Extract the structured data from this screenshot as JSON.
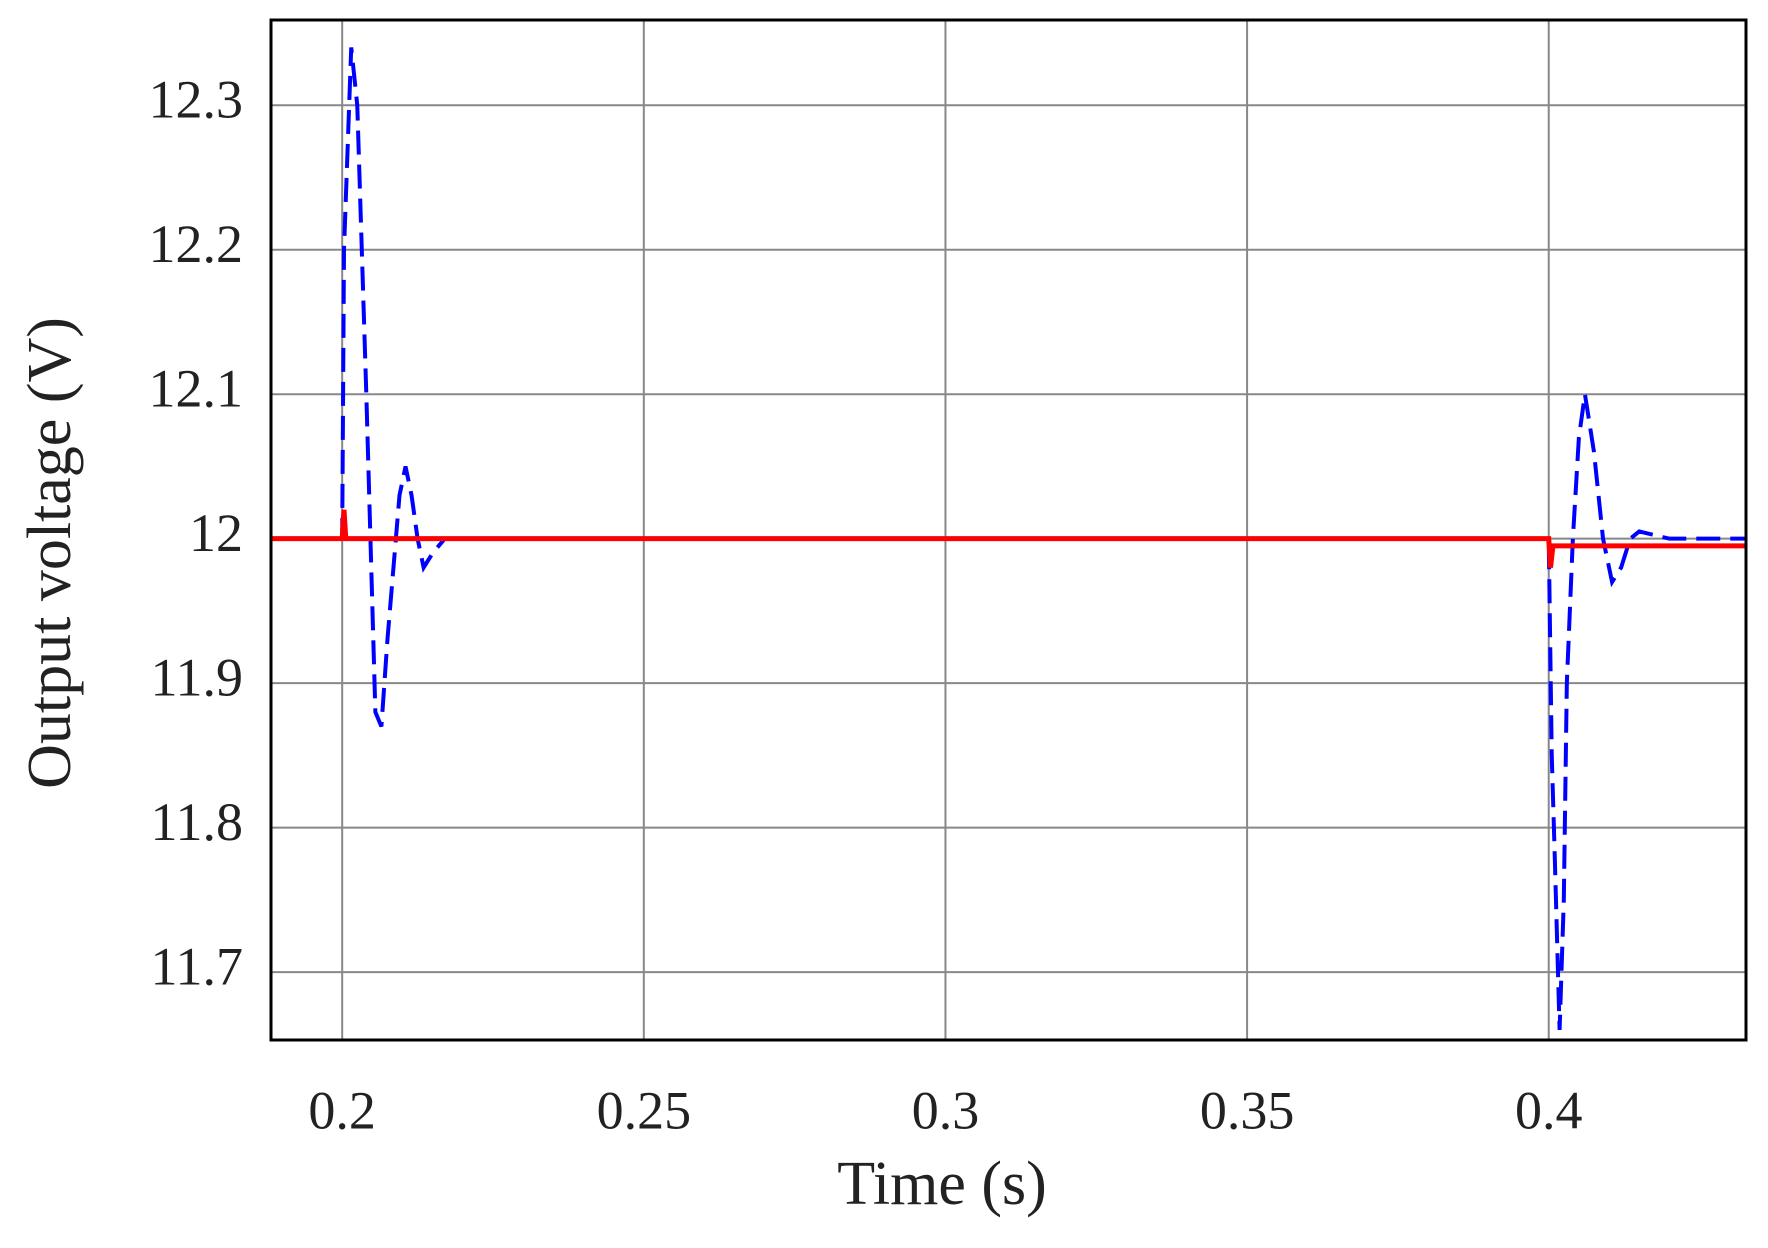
{
  "chart_data": {
    "type": "line",
    "x_label": "Time (s)",
    "y_label": "Output voltage (V)",
    "xlim": [
      0.1882,
      0.4327
    ],
    "ylim": [
      11.653,
      12.359
    ],
    "xticks": [
      0.2,
      0.25,
      0.3,
      0.35,
      0.4
    ],
    "yticks": [
      11.7,
      11.8,
      11.9,
      12,
      12.1,
      12.2,
      12.3
    ],
    "grid": true,
    "series": [
      {
        "color": "#0000ff",
        "dashed": true,
        "x": [
          0.1882,
          0.2,
          0.2003,
          0.2015,
          0.2025,
          0.204,
          0.2055,
          0.2065,
          0.2075,
          0.2085,
          0.2095,
          0.2105,
          0.2115,
          0.2125,
          0.2135,
          0.215,
          0.217,
          0.22,
          0.23,
          0.25,
          0.27,
          0.3,
          0.33,
          0.36,
          0.39,
          0.4,
          0.4005,
          0.401,
          0.4018,
          0.4025,
          0.403,
          0.404,
          0.405,
          0.406,
          0.4075,
          0.409,
          0.4105,
          0.412,
          0.4135,
          0.415,
          0.42,
          0.4327
        ],
        "values": [
          12.0,
          12.0,
          12.2,
          12.34,
          12.3,
          12.1,
          11.88,
          11.87,
          11.93,
          11.98,
          12.03,
          12.05,
          12.03,
          12.0,
          11.98,
          11.99,
          12.0,
          12.0,
          12.0,
          12.0,
          12.0,
          12.0,
          12.0,
          12.0,
          12.0,
          12.0,
          11.85,
          11.78,
          11.66,
          11.75,
          11.9,
          12.0,
          12.07,
          12.1,
          12.06,
          12.0,
          11.97,
          11.98,
          12.0,
          12.005,
          12.0,
          12.0
        ]
      },
      {
        "color": "#ff0000",
        "dashed": false,
        "x": [
          0.1882,
          0.2,
          0.2003,
          0.2006,
          0.4,
          0.4003,
          0.4007,
          0.42,
          0.4327
        ],
        "values": [
          12.0,
          12.0,
          12.02,
          12.0,
          12.0,
          11.98,
          11.995,
          11.995,
          11.995
        ]
      }
    ]
  }
}
